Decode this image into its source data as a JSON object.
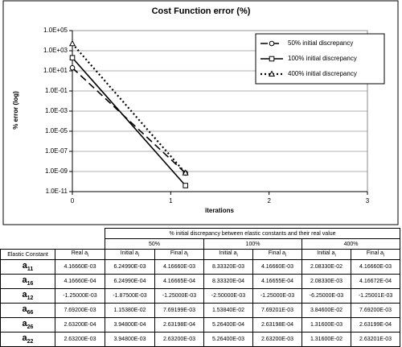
{
  "chart_data": {
    "type": "line",
    "title": "Cost Function error (%)",
    "x_label": "iterations",
    "y_label": "% error (log)",
    "x": [
      0,
      1.15
    ],
    "series": [
      {
        "name": "50% initial discrepancy",
        "color": "#000000",
        "dash": "9,5",
        "marker": "circle",
        "values": [
          20,
          7e-10
        ]
      },
      {
        "name": "100% initial discrepancy",
        "color": "#000000",
        "dash": "none",
        "marker": "square",
        "values": [
          200,
          4e-11
        ]
      },
      {
        "name": "400% initial discrepancy",
        "color": "#000000",
        "dash": "2,3",
        "marker": "triangle",
        "values": [
          5000,
          7e-10
        ]
      }
    ],
    "log_y": true,
    "grid": true,
    "legend": "top-right",
    "xlim": [
      0,
      3
    ],
    "xticks": [
      0,
      1,
      2,
      3
    ],
    "ylim": [
      1e-11,
      100000
    ],
    "yticks": [
      {
        "value": 100000,
        "label": "1.0E+05"
      },
      {
        "value": 1000,
        "label": "1.0E+03"
      },
      {
        "value": 10,
        "label": "1.0E+01"
      },
      {
        "value": 0.1,
        "label": "1.0E-01"
      },
      {
        "value": 0.001,
        "label": "1.0E-03"
      },
      {
        "value": 1e-05,
        "label": "1.0E-05"
      },
      {
        "value": 1e-07,
        "label": "1.0E-07"
      },
      {
        "value": 1e-09,
        "label": "1.0E-09"
      },
      {
        "value": 1e-11,
        "label": "1.0E-11"
      }
    ]
  },
  "table": {
    "group_header": "% initial discrepancy between elastic constants and their real value",
    "groups": [
      "50%",
      "100%",
      "400%"
    ],
    "row_header": "Elastic Constant",
    "real_header": {
      "text": "Real a",
      "sub": "i"
    },
    "sub_headers": [
      {
        "text": "Initial a",
        "sub": "i"
      },
      {
        "text": "Final a",
        "sub": "i"
      }
    ],
    "rows": [
      {
        "symbol": "a",
        "sub": "11",
        "cells": [
          "4.16660E-03",
          "6.24990E-03",
          "4.16660E-03",
          "8.33320E-03",
          "4.16660E-03",
          "2.08330E-02",
          "4.16660E-03"
        ]
      },
      {
        "symbol": "a",
        "sub": "16",
        "cells": [
          "4.16660E-04",
          "6.24990E-04",
          "4.16665E-04",
          "8.33320E-04",
          "4.16655E-04",
          "2.08330E-03",
          "4.16672E-04"
        ]
      },
      {
        "symbol": "a",
        "sub": "12",
        "cells": [
          "-1.25000E-03",
          "-1.87500E-03",
          "-1.25000E-03",
          "-2.50000E-03",
          "-1.25000E-03",
          "-6.25000E-03",
          "-1.25001E-03"
        ]
      },
      {
        "symbol": "a",
        "sub": "66",
        "cells": [
          "7.69200E-03",
          "1.15380E-02",
          "7.69199E-03",
          "1.53840E-02",
          "7.69201E-03",
          "3.84600E-02",
          "7.69200E-03"
        ]
      },
      {
        "symbol": "a",
        "sub": "26",
        "cells": [
          "2.63200E-04",
          "3.94800E-04",
          "2.63198E-04",
          "5.26400E-04",
          "2.63198E-04",
          "1.31600E-03",
          "2.63199E-04"
        ]
      },
      {
        "symbol": "a",
        "sub": "22",
        "cells": [
          "2.63200E-03",
          "3.94800E-03",
          "2.63200E-03",
          "5.26400E-03",
          "2.63200E-03",
          "1.31600E-02",
          "2.63201E-03"
        ]
      }
    ]
  }
}
